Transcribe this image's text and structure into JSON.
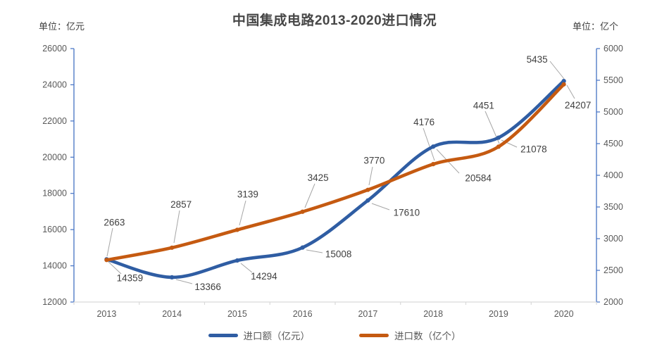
{
  "chart_data": {
    "type": "line",
    "title": "中国集成电路2013-2020进口情况",
    "smooth": true,
    "grid": false,
    "legend_position": "bottom",
    "categories": [
      "2013",
      "2014",
      "2015",
      "2016",
      "2017",
      "2018",
      "2019",
      "2020"
    ],
    "series": [
      {
        "name": "进口额（亿元）",
        "axis": "left",
        "color": "#2F5DA3",
        "values": [
          14359,
          13366,
          14294,
          15008,
          17610,
          20584,
          21078,
          24207
        ]
      },
      {
        "name": "进口数（亿个）",
        "axis": "right",
        "color": "#C55A11",
        "values": [
          2663,
          2857,
          3139,
          3425,
          3770,
          4176,
          4451,
          5435
        ]
      }
    ],
    "left_axis": {
      "unit_label": "单位：亿元",
      "min": 12000,
      "max": 26000,
      "step": 2000
    },
    "right_axis": {
      "unit_label": "单位：亿个",
      "min": 2000,
      "max": 6000,
      "step": 500
    },
    "colors": {
      "axis_line": "#4472C4",
      "bottom_axis_line": "#D9D9D9",
      "leader_line": "#A6A6A6",
      "tick_text": "#595959",
      "data_label_text": "#404040",
      "title_text": "#474747"
    }
  }
}
